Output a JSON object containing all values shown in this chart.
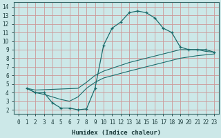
{
  "xlabel": "Humidex (Indice chaleur)",
  "xlim": [
    -0.5,
    23.5
  ],
  "ylim": [
    1.5,
    14.5
  ],
  "xticks": [
    0,
    1,
    2,
    3,
    4,
    5,
    6,
    7,
    8,
    9,
    10,
    11,
    12,
    13,
    14,
    15,
    16,
    17,
    18,
    19,
    20,
    21,
    22,
    23
  ],
  "yticks": [
    2,
    3,
    4,
    5,
    6,
    7,
    8,
    9,
    10,
    11,
    12,
    13,
    14
  ],
  "bg_color": "#cce8e8",
  "grid_color": "#cc9999",
  "line_color": "#1a6b6b",
  "curve_main": {
    "x": [
      1,
      2,
      3,
      4,
      5,
      6,
      7,
      8,
      9,
      10,
      11,
      12,
      13,
      14,
      15,
      16,
      17,
      18,
      19,
      20,
      21,
      22,
      23
    ],
    "y": [
      4.5,
      4.0,
      4.0,
      2.8,
      2.2,
      2.2,
      2.0,
      2.1,
      4.5,
      9.5,
      11.5,
      12.2,
      13.3,
      13.5,
      13.3,
      12.7,
      11.5,
      11.0,
      9.3,
      9.0,
      9.0,
      9.0,
      8.7
    ]
  },
  "curve_upper": {
    "x": [
      1,
      2,
      7,
      8,
      9,
      10,
      13,
      15,
      17,
      19,
      20,
      21,
      22,
      23
    ],
    "y": [
      4.5,
      4.3,
      4.5,
      5.2,
      6.0,
      6.5,
      7.5,
      8.0,
      8.5,
      9.0,
      9.0,
      9.0,
      8.8,
      8.7
    ]
  },
  "curve_lower": {
    "x": [
      1,
      2,
      3,
      4,
      5,
      6,
      7,
      8,
      9,
      10,
      13,
      15,
      17,
      19,
      21,
      23
    ],
    "y": [
      4.5,
      4.0,
      3.8,
      3.5,
      3.2,
      3.0,
      3.5,
      4.5,
      5.2,
      5.7,
      6.5,
      7.0,
      7.5,
      8.0,
      8.3,
      8.5
    ]
  }
}
